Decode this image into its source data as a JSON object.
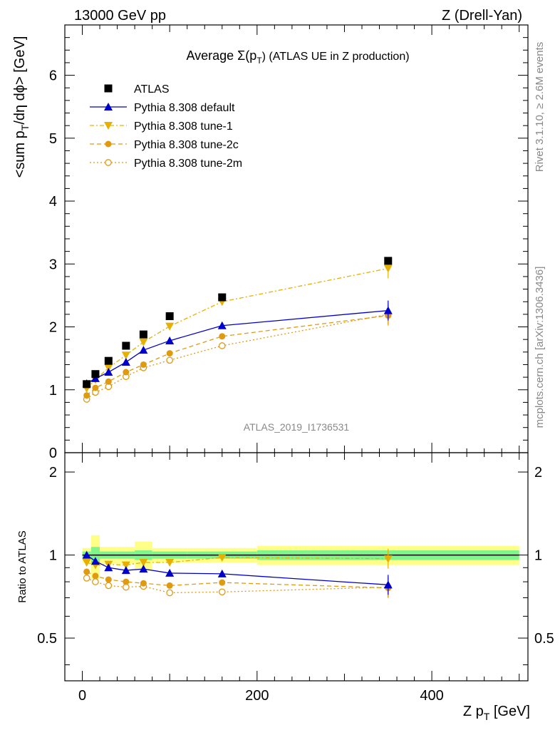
{
  "header": {
    "left": "13000 GeV pp",
    "right": "Z (Drell-Yan)"
  },
  "side": {
    "rivet": "Rivet 3.1.10, ≥ 2.6M events",
    "mcplots": "mcplots.cern.ch [arXiv:1306.3436]"
  },
  "colors": {
    "atlas": "#000000",
    "default": "#0000cc",
    "tune1": "#e6b000",
    "tune2c": "#e09a10",
    "tune2m": "#e09a10",
    "band_inner": "#7ff58c",
    "band_outer": "#ffff88"
  },
  "chart_data": [
    {
      "type": "line",
      "title_main": "Average Σ(p",
      "title_sub": "T",
      "title_rest": ") (ATLAS UE in Z production)",
      "watermark": "ATLAS_2019_I1736531",
      "ylabel_main": "<sum p",
      "ylabel_sub": "T",
      "ylabel_rest": "/dη dϕ> [GeV]",
      "xlim": [
        -20,
        510
      ],
      "ylim": [
        0,
        6.8
      ],
      "yticks": [
        "0",
        "1",
        "2",
        "3",
        "4",
        "5",
        "6"
      ],
      "legend_position": "top-left",
      "x": [
        5,
        15,
        30,
        50,
        70,
        100,
        160,
        350
      ],
      "series": [
        {
          "name": "ATLAS",
          "key": "atlas",
          "values": [
            1.09,
            1.25,
            1.46,
            1.7,
            1.88,
            2.17,
            2.47,
            3.05
          ]
        },
        {
          "name": "Pythia 8.308 default",
          "key": "default",
          "values": [
            1.1,
            1.18,
            1.28,
            1.44,
            1.63,
            1.78,
            2.02,
            2.26
          ]
        },
        {
          "name": "Pythia 8.308 tune-1",
          "key": "tune1",
          "values": [
            1.02,
            1.16,
            1.35,
            1.55,
            1.76,
            2.01,
            2.4,
            2.93
          ]
        },
        {
          "name": "Pythia 8.308 tune-2c",
          "key": "tune2c",
          "values": [
            0.91,
            1.03,
            1.13,
            1.28,
            1.4,
            1.58,
            1.85,
            2.18
          ]
        },
        {
          "name": "Pythia 8.308 tune-2m",
          "key": "tune2m",
          "values": [
            0.85,
            0.96,
            1.05,
            1.21,
            1.35,
            1.47,
            1.7,
            2.2
          ]
        }
      ]
    },
    {
      "type": "line",
      "ylabel": "Ratio to ATLAS",
      "xlabel_main": "Z p",
      "xlabel_sub": "T",
      "xlabel_rest": " [GeV]",
      "xticks": [
        "0",
        "200",
        "400"
      ],
      "xlim": [
        -20,
        510
      ],
      "ylim": [
        0.35,
        2.35
      ],
      "yscale": "log",
      "yticks": [
        "0.5",
        "1",
        "2"
      ],
      "x": [
        5,
        15,
        30,
        50,
        70,
        100,
        160,
        350
      ],
      "series": [
        {
          "key": "default",
          "values": [
            1.0,
            0.95,
            0.9,
            0.88,
            0.89,
            0.86,
            0.855,
            0.78
          ]
        },
        {
          "key": "tune1",
          "values": [
            0.94,
            0.92,
            0.925,
            0.92,
            0.94,
            0.94,
            0.98,
            0.97
          ]
        },
        {
          "key": "tune2c",
          "values": [
            0.87,
            0.84,
            0.815,
            0.8,
            0.79,
            0.775,
            0.795,
            0.76
          ]
        },
        {
          "key": "tune2m",
          "values": [
            0.825,
            0.8,
            0.775,
            0.765,
            0.77,
            0.73,
            0.735,
            0.765
          ]
        }
      ]
    }
  ]
}
